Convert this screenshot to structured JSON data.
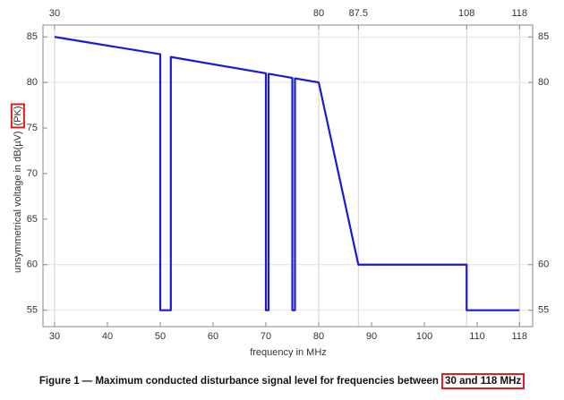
{
  "chart_data": {
    "type": "line",
    "x_label": "frequency in MHz",
    "y_label": "unsymmetrical voltage in dB(µV)",
    "y_label_highlight": "(PK)",
    "caption": "Figure 1 — Maximum conducted disturbance signal level for frequencies between",
    "caption_highlight": "30 and 118 MHz",
    "color": "#1a1ad6",
    "x": [
      30,
      50,
      50,
      52,
      52,
      70,
      70,
      70.5,
      70.5,
      75,
      75,
      75.5,
      75.5,
      80,
      87.5,
      108,
      108,
      118
    ],
    "values": [
      85,
      83.1,
      55,
      55,
      82.8,
      81,
      55,
      55,
      80.95,
      80.5,
      55,
      55,
      80.45,
      80,
      60,
      60,
      55,
      55
    ],
    "xlim": [
      27.8,
      120.5
    ],
    "ylim": [
      53.2,
      86.3
    ],
    "xticks": [
      30,
      40,
      50,
      60,
      70,
      80,
      90,
      100,
      110,
      118
    ],
    "yticks": [
      55,
      60,
      65,
      70,
      75,
      80,
      85
    ],
    "top_xticks": [
      30,
      80,
      87.5,
      108,
      118
    ],
    "right_yticks": [
      85,
      80,
      60,
      55
    ],
    "grid": true
  }
}
